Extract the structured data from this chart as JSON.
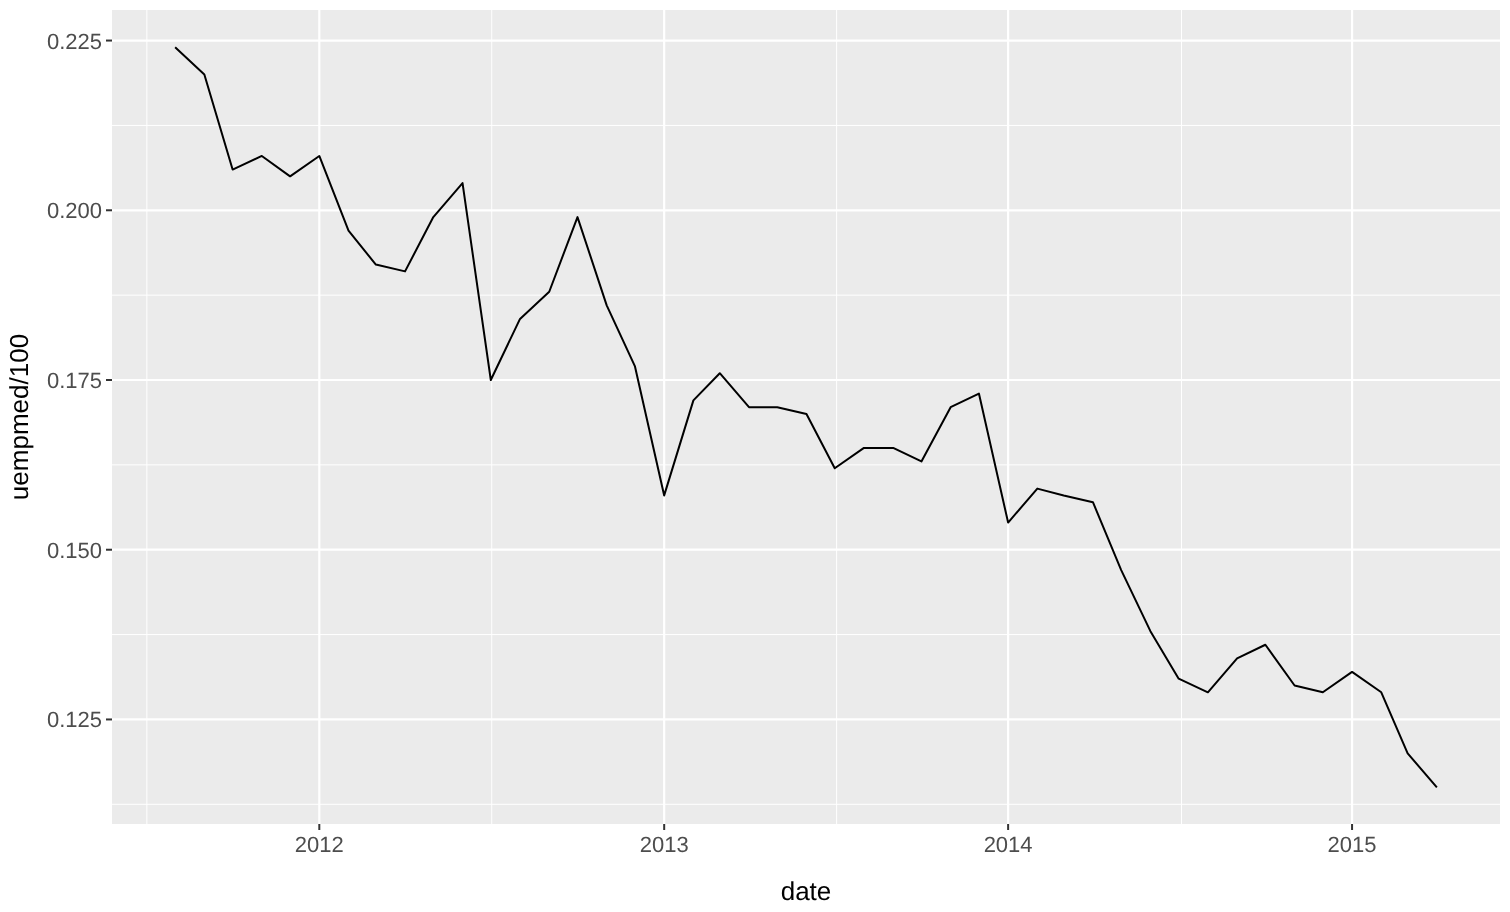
{
  "chart_data": {
    "type": "line",
    "xlabel": "date",
    "ylabel": "uempmed/100",
    "x": [
      "2011-08",
      "2011-09",
      "2011-10",
      "2011-11",
      "2011-12",
      "2012-01",
      "2012-02",
      "2012-03",
      "2012-04",
      "2012-05",
      "2012-06",
      "2012-07",
      "2012-08",
      "2012-09",
      "2012-10",
      "2012-11",
      "2012-12",
      "2013-01",
      "2013-02",
      "2013-03",
      "2013-04",
      "2013-05",
      "2013-06",
      "2013-07",
      "2013-08",
      "2013-09",
      "2013-10",
      "2013-11",
      "2013-12",
      "2014-01",
      "2014-02",
      "2014-03",
      "2014-04",
      "2014-05",
      "2014-06",
      "2014-07",
      "2014-08",
      "2014-09",
      "2014-10",
      "2014-11",
      "2014-12",
      "2015-01",
      "2015-02",
      "2015-03",
      "2015-04"
    ],
    "series": [
      {
        "color": "#000000",
        "values": [
          0.224,
          0.22,
          0.206,
          0.208,
          0.205,
          0.208,
          0.197,
          0.192,
          0.191,
          0.199,
          0.204,
          0.175,
          0.184,
          0.188,
          0.199,
          0.186,
          0.177,
          0.158,
          0.172,
          0.176,
          0.171,
          0.171,
          0.17,
          0.162,
          0.165,
          0.165,
          0.163,
          0.171,
          0.173,
          0.154,
          0.159,
          0.158,
          0.157,
          0.147,
          0.138,
          0.131,
          0.129,
          0.134,
          0.136,
          0.13,
          0.129,
          0.132,
          0.129,
          0.12,
          0.115
        ]
      }
    ],
    "xlim": [
      "2011-05-26",
      "2015-06-07"
    ],
    "xticks": [
      {
        "value": "2012-01-01",
        "label": "2012"
      },
      {
        "value": "2013-01-01",
        "label": "2013"
      },
      {
        "value": "2014-01-01",
        "label": "2014"
      },
      {
        "value": "2015-01-01",
        "label": "2015"
      }
    ],
    "ylim": [
      0.1096,
      0.2295
    ],
    "yticks": [
      {
        "value": 0.125,
        "label": "0.125"
      },
      {
        "value": 0.15,
        "label": "0.150"
      },
      {
        "value": 0.175,
        "label": "0.175"
      },
      {
        "value": 0.2,
        "label": "0.200"
      },
      {
        "value": 0.225,
        "label": "0.225"
      }
    ],
    "grid": true,
    "line_style": "solid",
    "marker": "none"
  }
}
